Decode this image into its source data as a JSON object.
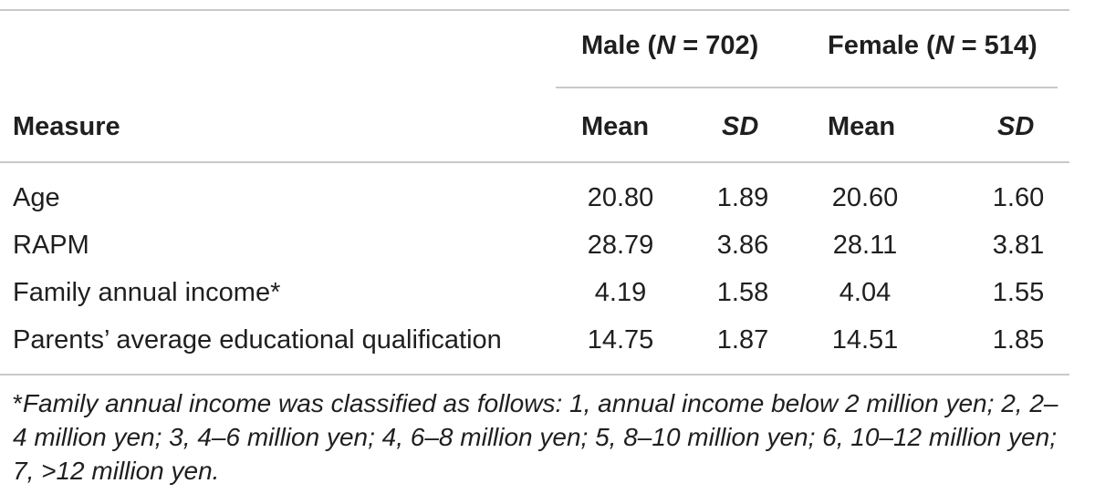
{
  "table": {
    "group_male": {
      "label": "Male (",
      "n_symbol": "N",
      "rest": " = 702)"
    },
    "group_female": {
      "label": "Female (",
      "n_symbol": "N",
      "rest": " = 514)"
    },
    "col_measure": "Measure",
    "col_mean": "Mean",
    "col_sd": "SD",
    "rows": [
      {
        "measure": "Age",
        "male_mean": "20.80",
        "male_sd": "1.89",
        "female_mean": "20.60",
        "female_sd": "1.60"
      },
      {
        "measure": "RAPM",
        "male_mean": "28.79",
        "male_sd": "3.86",
        "female_mean": "28.11",
        "female_sd": "3.81"
      },
      {
        "measure": "Family annual income*",
        "male_mean": "4.19",
        "male_sd": "1.58",
        "female_mean": "4.04",
        "female_sd": "1.55"
      },
      {
        "measure": "Parents’ average educational qualification",
        "male_mean": "14.75",
        "male_sd": "1.87",
        "female_mean": "14.51",
        "female_sd": "1.85"
      }
    ]
  },
  "footnote": {
    "marker": "*",
    "text": "Family annual income was classified as follows: 1, annual income below 2 million yen; 2, 2–4 million yen; 3, 4–6 million yen; 4, 6–8 million yen; 5, 8–10 million yen; 6, 10–12 million yen; 7, >12 million yen."
  }
}
